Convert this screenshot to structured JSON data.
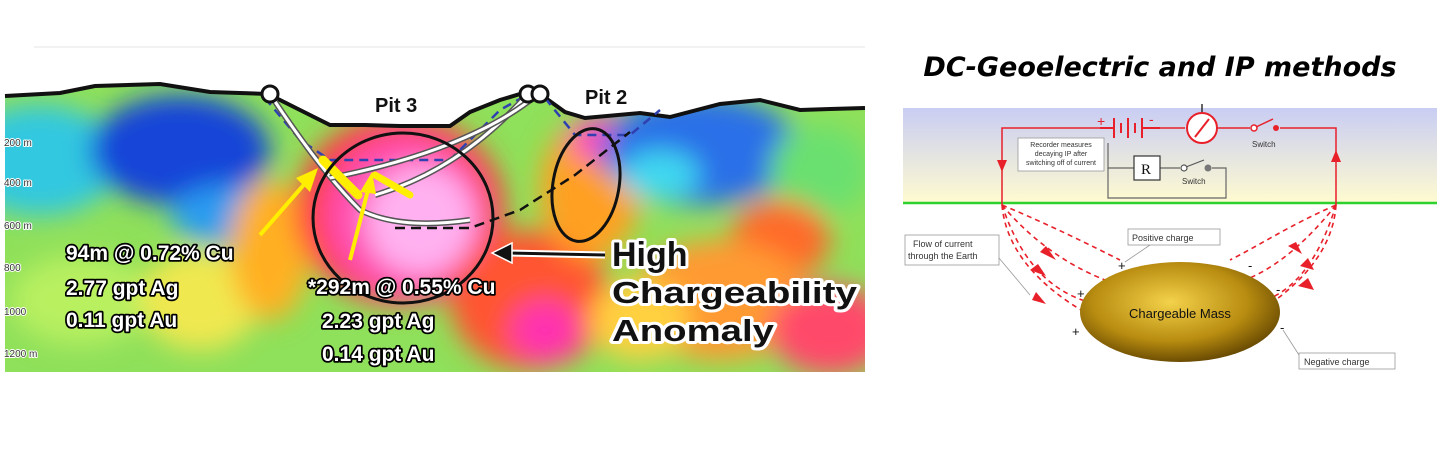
{
  "section": {
    "depth_labels": [
      "200 m",
      "400 m",
      "600 m",
      "800",
      "1000",
      "1200 m"
    ],
    "pit_labels": [
      "Pit 3",
      "Pit 2"
    ],
    "intercept_left": [
      "94m @ 0.72% Cu",
      "2.77 gpt Ag",
      "0.11 gpt Au"
    ],
    "intercept_right": [
      "*292m @ 0.55% Cu",
      "2.23 gpt Ag",
      "0.14 gpt Au"
    ],
    "anomaly_label": [
      "High",
      "Chargeability",
      "Anomaly"
    ]
  },
  "ip_diagram": {
    "title": "DC-Geoelectric and IP methods",
    "battery_plus": "+",
    "battery_minus": "-",
    "switch_top": "Switch",
    "switch_recorder": "Switch",
    "resistor": "R",
    "recorder_note": [
      "Recorder measures",
      "decaying IP after",
      "switching off of current"
    ],
    "flow_note": [
      "Flow of current",
      "through the Earth"
    ],
    "positive_charge": "Positive charge",
    "negative_charge": "Negative charge",
    "mass_label": "Chargeable Mass",
    "plus_sign": "+",
    "minus_sign": "-",
    "colors": {
      "sky_top": "#c9cdf3",
      "sky_bottom": "#fffbd0",
      "circuit": "#e8202a",
      "ground": "#2fd12f",
      "mass": "#b88c10"
    }
  }
}
